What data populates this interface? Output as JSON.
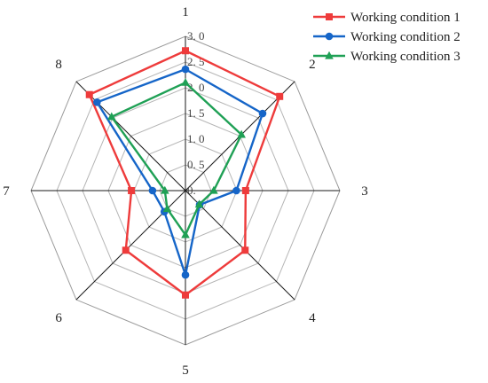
{
  "chart_data": {
    "type": "radar",
    "axes": [
      "1",
      "2",
      "3",
      "4",
      "5",
      "6",
      "7",
      "8"
    ],
    "rlim": [
      0,
      3.0
    ],
    "ticks": [
      "0.",
      "0. 5",
      "1. 0",
      "1. 5",
      "2. 0",
      "2. 5",
      "3. 0"
    ],
    "tick_values": [
      0,
      0.5,
      1.0,
      1.5,
      2.0,
      2.5,
      3.0
    ],
    "grid": true,
    "legend_position": "top-right",
    "series": [
      {
        "name": "Working condition 1",
        "color": "#ee3b3b",
        "marker": "square",
        "values": [
          2.72,
          2.59,
          1.17,
          1.64,
          2.03,
          1.64,
          1.05,
          2.64
        ]
      },
      {
        "name": "Working condition 2",
        "color": "#1565c8",
        "marker": "circle",
        "values": [
          2.36,
          2.12,
          0.99,
          0.39,
          1.64,
          0.58,
          0.64,
          2.43
        ]
      },
      {
        "name": "Working condition 3",
        "color": "#1fa055",
        "marker": "triangle",
        "values": [
          2.1,
          1.54,
          0.55,
          0.38,
          0.86,
          0.5,
          0.4,
          2.03
        ]
      }
    ]
  }
}
